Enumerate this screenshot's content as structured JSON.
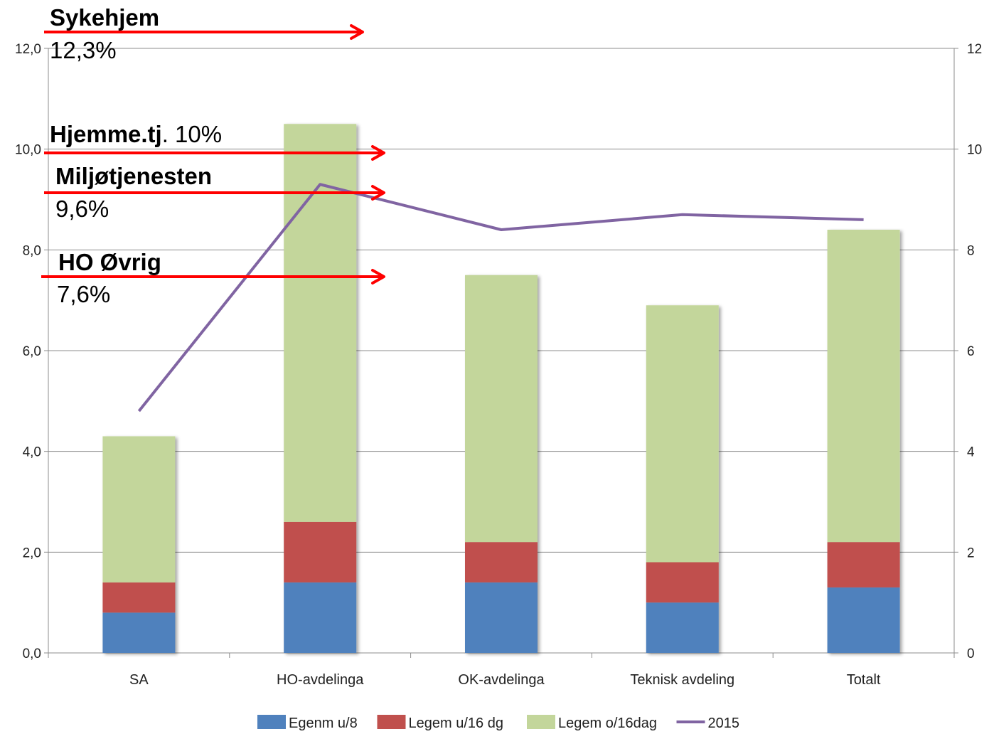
{
  "chart_data": {
    "type": "bar",
    "stacked": true,
    "categories": [
      "SA",
      "HO-avdelinga",
      "OK-avdelinga",
      "Teknisk avdeling",
      "Totalt"
    ],
    "series": [
      {
        "name": "Egenm u/8",
        "color": "#4f81bd",
        "values": [
          0.8,
          1.4,
          1.4,
          1.0,
          1.3
        ]
      },
      {
        "name": "Legem u/16 dg",
        "color": "#c0504d",
        "values": [
          0.6,
          1.2,
          0.8,
          0.8,
          0.9
        ]
      },
      {
        "name": "Legem o/16dag",
        "color": "#c3d69b",
        "values": [
          2.9,
          7.9,
          5.3,
          5.1,
          6.2
        ]
      }
    ],
    "line_series": {
      "name": "2015",
      "color": "#8064a2",
      "axis": "right",
      "values": [
        4.8,
        9.3,
        8.4,
        8.7,
        8.6
      ]
    },
    "left_axis": {
      "ylim": [
        0,
        12
      ],
      "ticks": [
        "0,0",
        "2,0",
        "4,0",
        "6,0",
        "8,0",
        "10,0",
        "12,0"
      ]
    },
    "right_axis": {
      "ylim": [
        0,
        12
      ],
      "ticks": [
        "0",
        "2",
        "4",
        "6",
        "8",
        "10",
        "12"
      ]
    },
    "grid": true,
    "legend_position": "bottom",
    "annotations": [
      {
        "bold": "Sykehjem",
        "plain": "12,3%",
        "layout": "two-line",
        "arrow_value": 12.3
      },
      {
        "bold": "Hjemme.tj",
        "plain": ". 10%",
        "layout": "inline",
        "arrow_value": 10.0
      },
      {
        "bold": "Miljøtjenesten",
        "plain": "9,6%",
        "layout": "two-line",
        "arrow_value": 9.6
      },
      {
        "bold": "HO Øvrig",
        "plain": "7,6%",
        "layout": "two-line",
        "arrow_value": 7.6
      }
    ],
    "arrow_color": "#ff0000"
  }
}
